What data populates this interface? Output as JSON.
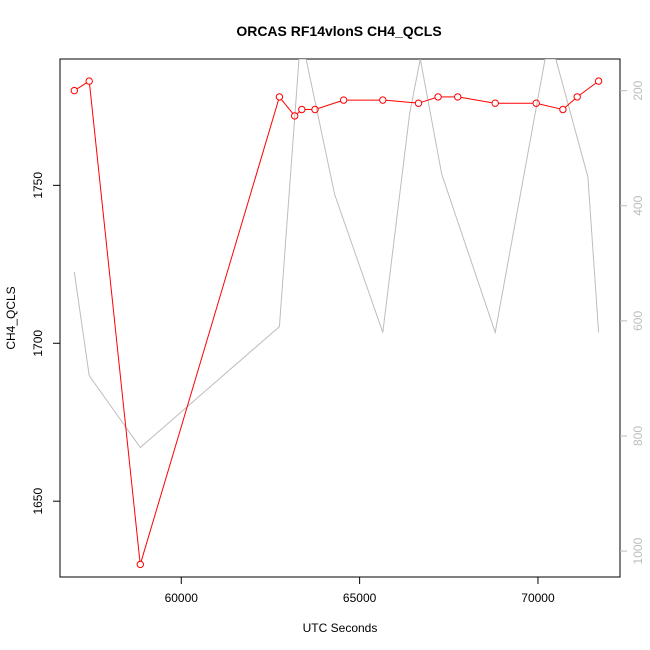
{
  "chart_data": {
    "type": "line",
    "title": "ORCAS RF14vlonS CH4_QCLS",
    "xlabel": "UTC Seconds",
    "ylabel": "CH4_QCLS",
    "xlim": [
      56600,
      72300
    ],
    "ylim": [
      1626,
      1790
    ],
    "y2lim": [
      1045,
      145
    ],
    "y2_reversed": true,
    "x_ticks": [
      60000,
      65000,
      70000
    ],
    "y_ticks": [
      1650,
      1700,
      1750
    ],
    "y2_ticks": [
      200,
      400,
      600,
      800,
      1000
    ],
    "grid": false,
    "series": [
      {
        "axis": "left",
        "color": "#ff0000",
        "marker": "circle",
        "x": [
          57000,
          57420,
          58850,
          62750,
          63180,
          63380,
          63750,
          64550,
          65650,
          66650,
          67200,
          67750,
          68800,
          69950,
          70700,
          71100,
          71700
        ],
        "y": [
          1780,
          1783,
          1630,
          1778,
          1772,
          1774,
          1774,
          1777,
          1777,
          1776,
          1778,
          1778,
          1776,
          1776,
          1774,
          1778,
          1783
        ]
      },
      {
        "axis": "right",
        "color": "#bdbdbd",
        "marker": "none",
        "x": [
          57000,
          57420,
          58850,
          62750,
          63300,
          63500,
          64300,
          65650,
          66400,
          66700,
          67300,
          68800,
          70200,
          70500,
          71400,
          71700
        ],
        "y": [
          515,
          695,
          820,
          610,
          145,
          145,
          380,
          620,
          240,
          145,
          345,
          620,
          145,
          145,
          350,
          620
        ]
      }
    ]
  },
  "tick_labels": {
    "x": [
      "60000",
      "65000",
      "70000"
    ],
    "y": [
      "1650",
      "1700",
      "1750"
    ],
    "y2": [
      "200",
      "400",
      "600",
      "800",
      "1000"
    ]
  }
}
